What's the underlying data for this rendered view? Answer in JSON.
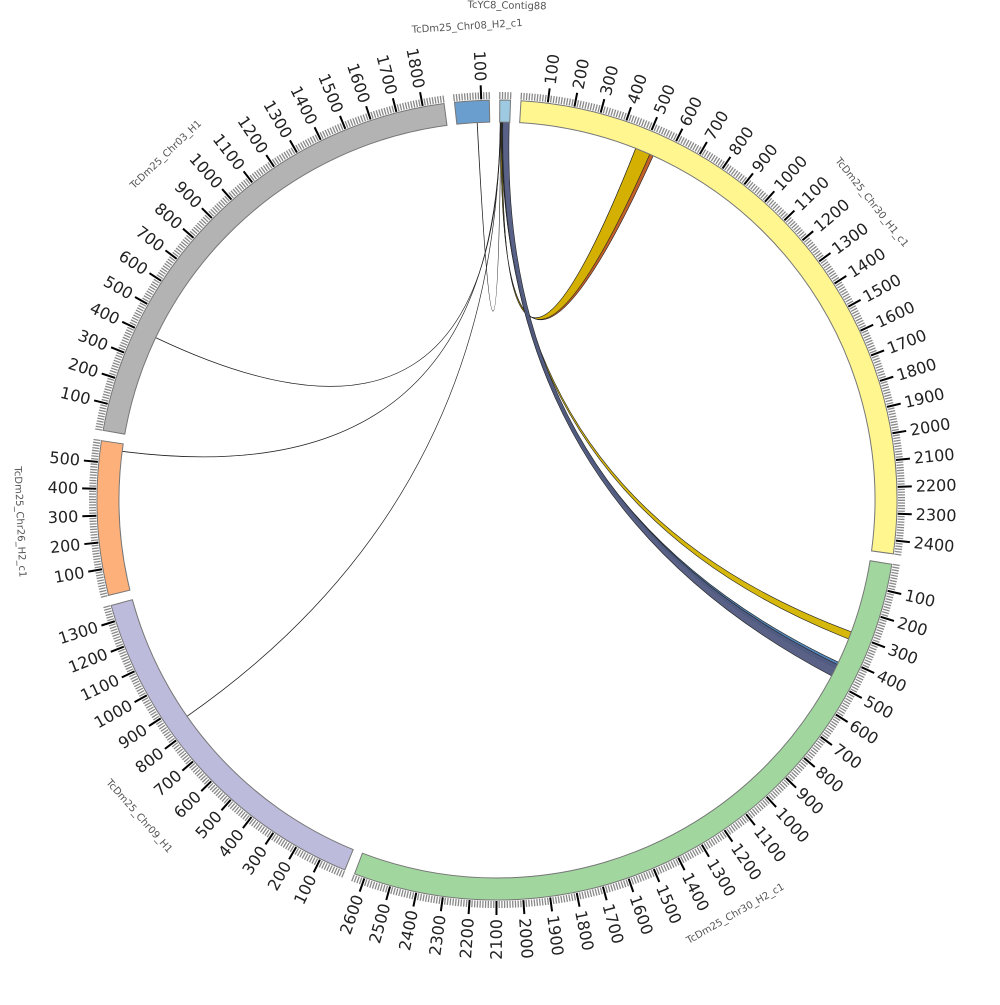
{
  "chart_data": {
    "type": "chord",
    "title": "",
    "tick_interval": 100,
    "minor_tick_interval": 10,
    "segments": [
      {
        "name": "TcYC8_Contig88",
        "length": 40,
        "color": "#9ecae1",
        "show_tick_labels": false
      },
      {
        "name": "TcDm25_Chr30_H1_c1",
        "length": 2450,
        "color": "#fff68f",
        "show_tick_labels": true
      },
      {
        "name": "TcDm25_Chr30_H2_c1",
        "length": 2640,
        "color": "#a1d79f",
        "show_tick_labels": true
      },
      {
        "name": "TcDm25_Chr09_H1",
        "length": 1360,
        "color": "#bcbbdc",
        "show_tick_labels": true
      },
      {
        "name": "TcDm25_Chr26_H2_c1",
        "length": 580,
        "color": "#fdb07a",
        "show_tick_labels": true
      },
      {
        "name": "TcDm25_Chr03_H1",
        "length": 1880,
        "color": "#b3b3b3",
        "show_tick_labels": true
      },
      {
        "name": "TcDm25_Chr08_H2_c1",
        "length": 130,
        "color": "#6a9ece",
        "show_tick_labels": true
      }
    ],
    "links": [
      {
        "from": [
          0,
          6,
          12
        ],
        "to": [
          1,
          470,
          545
        ],
        "color": "#c0561d"
      },
      {
        "from": [
          0,
          6,
          11
        ],
        "to": [
          1,
          470,
          530
        ],
        "color": "#d4b400"
      },
      {
        "from": [
          0,
          8,
          12
        ],
        "to": [
          2,
          290,
          320
        ],
        "color": "#d4b400"
      },
      {
        "from": [
          0,
          10,
          14
        ],
        "to": [
          2,
          420,
          445
        ],
        "color": "#4a7fb5"
      },
      {
        "from": [
          0,
          12,
          38
        ],
        "to": [
          2,
          430,
          480
        ],
        "color": "#505a80"
      },
      {
        "from": [
          0,
          4,
          4.3
        ],
        "to": [
          5,
          400,
          401
        ],
        "color": "#333333"
      },
      {
        "from": [
          0,
          3,
          3.3
        ],
        "to": [
          4,
          550,
          551
        ],
        "color": "#333333"
      },
      {
        "from": [
          0,
          2,
          2.3
        ],
        "to": [
          3,
          850,
          851
        ],
        "color": "#333333"
      },
      {
        "from": [
          6,
          80,
          81
        ],
        "to": [
          0,
          5,
          5.3
        ],
        "color": "#555522"
      }
    ]
  }
}
